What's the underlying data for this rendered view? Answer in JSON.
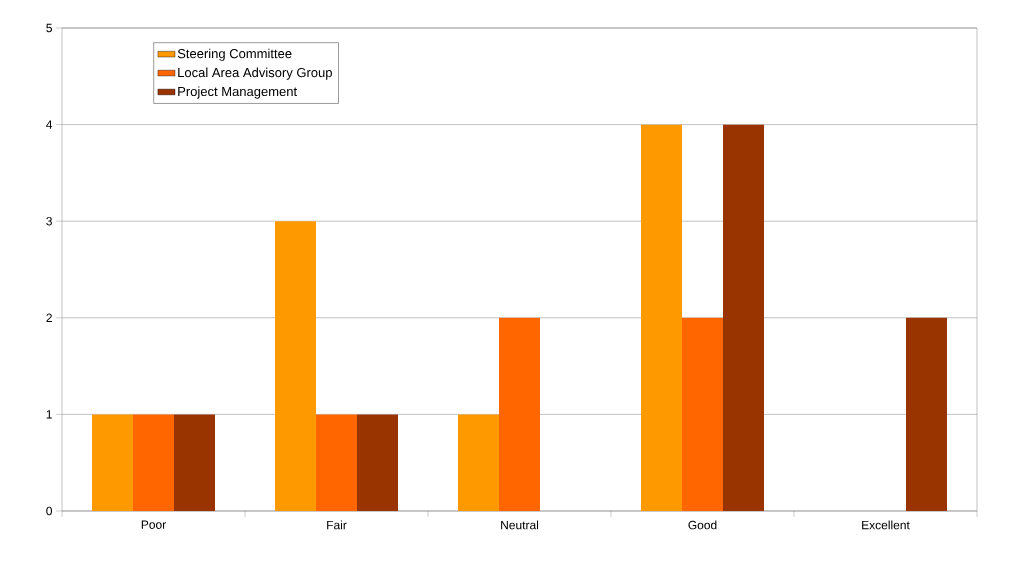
{
  "chart_data": {
    "type": "bar",
    "categories": [
      "Poor",
      "Fair",
      "Neutral",
      "Good",
      "Excellent"
    ],
    "series": [
      {
        "name": "Steering Committee",
        "color": "#ff9900",
        "values": [
          1,
          3,
          1,
          4,
          0
        ]
      },
      {
        "name": "Local Area Advisory Group",
        "color": "#ff6600",
        "values": [
          1,
          1,
          2,
          2,
          0
        ]
      },
      {
        "name": "Project Management",
        "color": "#993300",
        "values": [
          1,
          1,
          0,
          4,
          2
        ]
      }
    ],
    "ylim": [
      0,
      5
    ],
    "yticks": [
      0,
      1,
      2,
      3,
      4,
      5
    ],
    "grid": "y",
    "legend": "top left"
  }
}
